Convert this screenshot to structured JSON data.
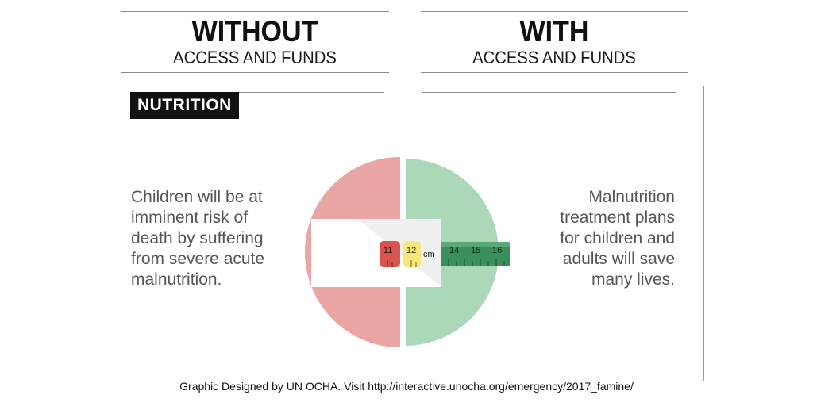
{
  "left_column": {
    "heading": "WITHOUT",
    "subheading": "ACCESS AND FUNDS",
    "category_tag": "NUTRITION",
    "body_lines": [
      "Children will be at",
      "imminent risk of",
      "death by suffering",
      "from severe acute",
      "malnutrition."
    ]
  },
  "right_column": {
    "heading": "WITH",
    "subheading": "ACCESS AND FUNDS",
    "body_lines": [
      "Malnutrition",
      "treatment plans",
      "for children and",
      "adults will save",
      "many lives."
    ]
  },
  "tape": {
    "labels": [
      "11",
      "12",
      "cm",
      "14",
      "15",
      "16"
    ]
  },
  "footer": "Graphic Designed by UN OCHA. Visit http://interactive.unocha.org/emergency/2017_famine/",
  "colors": {
    "without_circle": "#eaa5a5",
    "with_circle": "#acd8ba",
    "tape_red": "#d9544f",
    "tape_yellow": "#f4e87a",
    "tape_green": "#3a8f5a"
  }
}
